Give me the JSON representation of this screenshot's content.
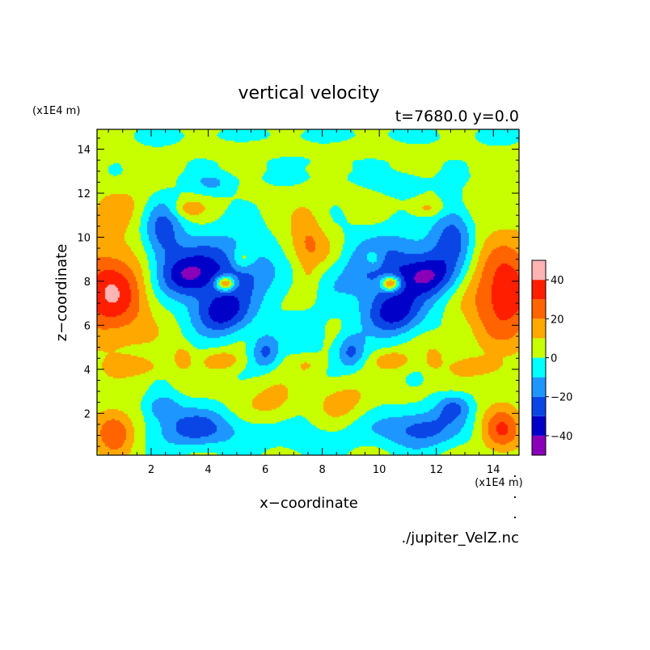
{
  "chart_data": {
    "type": "heatmap",
    "title": "vertical velocity",
    "subtitle": "t=7680.0 y=0.0",
    "xlabel": "x−coordinate",
    "ylabel": "z−coordinate",
    "x_unit_label": "(x1E4 m)",
    "y_unit_label": "(x1E4 m)",
    "source_label": "./jupiter_VelZ.nc",
    "xlim": [
      0.1,
      14.9
    ],
    "ylim": [
      0.1,
      14.9
    ],
    "x_ticks": [
      2,
      4,
      6,
      8,
      10,
      12,
      14
    ],
    "y_ticks": [
      2,
      4,
      6,
      8,
      10,
      12,
      14
    ],
    "x_tick_labels": [
      "2",
      "4",
      "6",
      "8",
      "10",
      "12",
      "14"
    ],
    "y_tick_labels": [
      "2",
      "4",
      "6",
      "8",
      "10",
      "12",
      "14"
    ],
    "colorbar": {
      "levels": [
        -50,
        -40,
        -30,
        -20,
        -10,
        0,
        10,
        20,
        30,
        40,
        50
      ],
      "colors": [
        "#8a00b8",
        "#0000c8",
        "#0a46e6",
        "#1e96ff",
        "#00ffff",
        "#c8ff00",
        "#ffa800",
        "#ff6400",
        "#ff1e00",
        "#ffb4b4"
      ],
      "tick_values": [
        -40,
        -20,
        0,
        20,
        40
      ],
      "tick_labels": [
        "−40",
        "−20",
        "0",
        "20",
        "40"
      ]
    },
    "grid": false,
    "legend": "colorbar-right",
    "background_value": 3,
    "field_features": [
      {
        "x": 7.5,
        "z": 14.6,
        "w": 12.0,
        "h": 0.45,
        "v": -5
      },
      {
        "x": 7.5,
        "z": 13.5,
        "w": 4.0,
        "h": 0.4,
        "v": -4
      },
      {
        "x": 7.5,
        "z": 12.7,
        "w": 5.0,
        "h": 0.35,
        "v": -4
      },
      {
        "x": 7.5,
        "z": 0.6,
        "w": 1.4,
        "h": 0.6,
        "v": -6
      },
      {
        "x": 7.5,
        "z": 2.0,
        "w": 0.8,
        "h": 1.6,
        "v": -5
      },
      {
        "x": 7.5,
        "z": 5.6,
        "w": 0.7,
        "h": 1.0,
        "v": -12
      },
      {
        "x": 7.5,
        "z": 4.2,
        "w": 0.5,
        "h": 0.5,
        "v": 10
      },
      {
        "x": 7.5,
        "z": 9.3,
        "w": 1.5,
        "h": 1.0,
        "v": 16
      },
      {
        "x": 7.5,
        "z": 10.3,
        "w": 0.6,
        "h": 1.3,
        "v": 13
      },
      {
        "x": 7.5,
        "z": 7.9,
        "w": 0.45,
        "h": 1.0,
        "v": 12
      },
      {
        "x": 4.6,
        "z": 8.6,
        "w": 2.2,
        "h": 1.6,
        "v": -30
      },
      {
        "x": 3.2,
        "z": 8.2,
        "w": 0.9,
        "h": 0.9,
        "v": -25
      },
      {
        "x": 2.4,
        "z": 10.3,
        "w": 0.7,
        "h": 1.5,
        "v": -25
      },
      {
        "x": 4.5,
        "z": 6.5,
        "w": 1.0,
        "h": 1.0,
        "v": -35
      },
      {
        "x": 4.6,
        "z": 7.9,
        "w": 0.35,
        "h": 0.35,
        "v": 45
      },
      {
        "x": 0.6,
        "z": 7.5,
        "w": 1.3,
        "h": 2.2,
        "v": 36
      },
      {
        "x": 0.7,
        "z": 1.2,
        "w": 0.7,
        "h": 1.0,
        "v": 28
      },
      {
        "x": 3.5,
        "z": 1.3,
        "w": 1.4,
        "h": 0.9,
        "v": -28
      },
      {
        "x": 2.4,
        "z": 2.3,
        "w": 0.6,
        "h": 0.6,
        "v": -20
      },
      {
        "x": 6.0,
        "z": 4.8,
        "w": 0.5,
        "h": 0.8,
        "v": -25
      },
      {
        "x": 6.3,
        "z": 2.5,
        "w": 1.0,
        "h": 0.9,
        "v": 12
      },
      {
        "x": 4.5,
        "z": 4.4,
        "w": 0.6,
        "h": 0.4,
        "v": 17
      },
      {
        "x": 3.1,
        "z": 4.5,
        "w": 0.3,
        "h": 0.5,
        "v": 15
      },
      {
        "x": 5.2,
        "z": 9.0,
        "w": 0.4,
        "h": 0.5,
        "v": 18
      },
      {
        "x": 3.3,
        "z": 11.3,
        "w": 0.6,
        "h": 0.4,
        "v": 14
      },
      {
        "x": 4.2,
        "z": 12.4,
        "w": 0.8,
        "h": 0.5,
        "v": -12
      },
      {
        "x": 1.5,
        "z": 4.1,
        "w": 0.9,
        "h": 0.4,
        "v": 14
      },
      {
        "x": 5.5,
        "z": 14.0,
        "w": 1.6,
        "h": 0.4,
        "v": 7
      },
      {
        "x": 1.0,
        "z": 11.5,
        "w": 1.2,
        "h": 1.0,
        "v": 8
      },
      {
        "x": 5.6,
        "z": 1.2,
        "w": 1.2,
        "h": 0.8,
        "v": -6
      }
    ]
  }
}
